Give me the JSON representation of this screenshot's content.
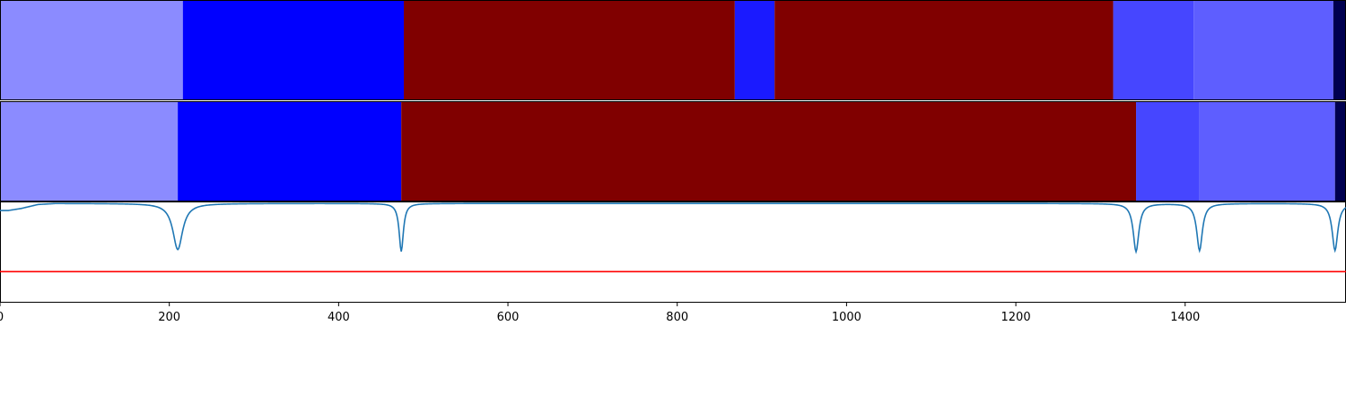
{
  "chart_data": [
    {
      "type": "segment-bar",
      "panel": "predicted",
      "x_range": [
        0,
        1590
      ],
      "segments": [
        {
          "start": 0,
          "end": 216,
          "color": "#8b8bff"
        },
        {
          "start": 216,
          "end": 477,
          "color": "#0000ff"
        },
        {
          "start": 477,
          "end": 868,
          "color": "#800000"
        },
        {
          "start": 868,
          "end": 915,
          "color": "#1a1aff"
        },
        {
          "start": 915,
          "end": 1315,
          "color": "#800000"
        },
        {
          "start": 1315,
          "end": 1410,
          "color": "#4646ff"
        },
        {
          "start": 1410,
          "end": 1575,
          "color": "#5e5eff"
        },
        {
          "start": 1575,
          "end": 1590,
          "color": "#000050"
        }
      ]
    },
    {
      "type": "segment-bar",
      "panel": "ground-truth",
      "x_range": [
        0,
        1590
      ],
      "segments": [
        {
          "start": 0,
          "end": 210,
          "color": "#8b8bff"
        },
        {
          "start": 210,
          "end": 474,
          "color": "#0000ff"
        },
        {
          "start": 474,
          "end": 1342,
          "color": "#800000"
        },
        {
          "start": 1342,
          "end": 1417,
          "color": "#4646ff"
        },
        {
          "start": 1417,
          "end": 1577,
          "color": "#5e5eff"
        },
        {
          "start": 1577,
          "end": 1590,
          "color": "#000050"
        }
      ]
    },
    {
      "type": "line",
      "panel": "boundary-score",
      "xlim": [
        0,
        1590
      ],
      "ylim": [
        0,
        1
      ],
      "series_color": "#1f77b4",
      "threshold": 0.31,
      "threshold_color": "#ff0000",
      "baseline": 0.99,
      "dips": [
        {
          "center": 210,
          "depth": 0.46,
          "width": 7
        },
        {
          "center": 474,
          "depth": 0.48,
          "width": 3
        },
        {
          "center": 1342,
          "depth": 0.48,
          "width": 4
        },
        {
          "center": 1417,
          "depth": 0.47,
          "width": 4
        },
        {
          "center": 1577,
          "depth": 0.47,
          "width": 4
        }
      ],
      "start_values": [
        [
          0,
          0.92
        ],
        [
          10,
          0.92
        ],
        [
          25,
          0.94
        ],
        [
          45,
          0.98
        ],
        [
          65,
          0.99
        ]
      ],
      "xticks": [
        0,
        200,
        400,
        600,
        800,
        1000,
        1200,
        1400
      ],
      "xtick_labels": [
        "0",
        "200",
        "400",
        "600",
        "800",
        "1000",
        "1200",
        "1400"
      ]
    }
  ]
}
